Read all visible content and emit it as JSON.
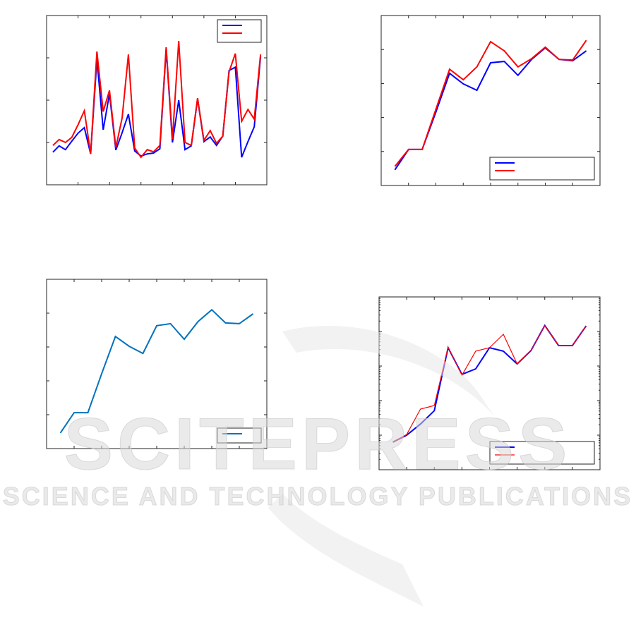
{
  "chart_data": [
    {
      "type": "line",
      "xlim": [
        0,
        7
      ],
      "xticks": [
        1,
        2,
        3,
        4,
        5,
        6
      ],
      "ylim": [
        0,
        4
      ],
      "yticks": [
        1,
        2,
        3
      ],
      "legend": "upper right",
      "x": [
        0.2,
        0.4,
        0.6,
        0.8,
        1.0,
        1.2,
        1.4,
        1.6,
        1.8,
        2.0,
        2.2,
        2.4,
        2.6,
        2.8,
        3.0,
        3.2,
        3.4,
        3.6,
        3.8,
        4.0,
        4.2,
        4.4,
        4.6,
        4.8,
        5.0,
        5.2,
        5.4,
        5.6,
        5.8,
        6.0,
        6.2,
        6.4,
        6.6,
        6.8
      ],
      "series": [
        {
          "color": "#0000ff",
          "values": [
            0.77,
            0.92,
            0.83,
            1.03,
            1.22,
            1.35,
            0.73,
            2.97,
            1.3,
            2.15,
            0.82,
            1.23,
            1.67,
            0.8,
            0.68,
            0.73,
            0.75,
            0.85,
            3.2,
            1.0,
            2.0,
            0.83,
            0.92,
            2.03,
            1.02,
            1.13,
            0.93,
            1.15,
            2.7,
            2.78,
            0.65,
            1.02,
            1.37,
            3.03
          ]
        },
        {
          "color": "#ff0000",
          "values": [
            0.93,
            1.07,
            1.0,
            1.12,
            1.42,
            1.75,
            0.73,
            3.15,
            1.73,
            2.23,
            0.88,
            1.58,
            3.08,
            0.87,
            0.65,
            0.83,
            0.78,
            0.93,
            3.25,
            1.08,
            3.4,
            1.0,
            0.93,
            2.05,
            1.05,
            1.28,
            0.98,
            1.15,
            2.67,
            3.1,
            1.5,
            1.78,
            1.55,
            3.08
          ]
        }
      ]
    },
    {
      "type": "line",
      "xlim": [
        0,
        8
      ],
      "xticks": [
        1,
        2,
        3,
        4,
        5,
        6,
        7
      ],
      "ylim": [
        0,
        5
      ],
      "yticks": [
        1,
        2,
        3,
        4
      ],
      "legend": "lower right",
      "x": [
        0.5,
        1.0,
        1.5,
        2.0,
        2.5,
        3.0,
        3.5,
        4.0,
        4.5,
        5.0,
        5.5,
        6.0,
        6.5,
        7.0,
        7.5
      ],
      "series": [
        {
          "color": "#0000ff",
          "values": [
            0.46,
            1.06,
            1.06,
            2.16,
            3.3,
            2.99,
            2.8,
            3.61,
            3.65,
            3.24,
            3.71,
            4.05,
            3.71,
            3.67,
            3.96
          ]
        },
        {
          "color": "#ff0000",
          "values": [
            0.56,
            1.06,
            1.06,
            2.24,
            3.42,
            3.11,
            3.49,
            4.23,
            3.96,
            3.49,
            3.73,
            4.07,
            3.71,
            3.69,
            4.27
          ]
        }
      ]
    },
    {
      "type": "line",
      "xlim": [
        0,
        8
      ],
      "xticks": [
        1,
        2,
        3,
        4,
        5,
        6,
        7
      ],
      "ylim": [
        0,
        5
      ],
      "yticks": [
        1,
        2,
        3,
        4
      ],
      "legend": "lower right",
      "x": [
        0.5,
        1.0,
        1.5,
        2.0,
        2.5,
        3.0,
        3.5,
        4.0,
        4.5,
        5.0,
        5.5,
        6.0,
        6.5,
        7.0,
        7.5
      ],
      "series": [
        {
          "color": "#0072bd",
          "values": [
            0.46,
            1.06,
            1.06,
            2.21,
            3.31,
            3.02,
            2.81,
            3.63,
            3.69,
            3.23,
            3.75,
            4.1,
            3.71,
            3.69,
            3.98
          ]
        }
      ]
    },
    {
      "type": "line",
      "log": true,
      "xlim": [
        0,
        8
      ],
      "xticks": [
        1,
        2,
        3,
        4,
        5,
        6,
        7
      ],
      "ylim": [
        1,
        100000
      ],
      "yticks": [
        10,
        100,
        1000,
        10000
      ],
      "legend": "lower right",
      "x": [
        0.5,
        1.0,
        1.5,
        2.0,
        2.5,
        3.0,
        3.5,
        4.0,
        4.5,
        5.0,
        5.5,
        6.0,
        6.5,
        7.0,
        7.5
      ],
      "series": [
        {
          "color": "#0000ff",
          "values": [
            6.3,
            10,
            21,
            51,
            3400,
            575,
            830,
            3400,
            2700,
            1150,
            2800,
            15000,
            3900,
            3900,
            14500
          ]
        },
        {
          "color": "#ff0000",
          "values": [
            6.3,
            10.5,
            57,
            72,
            3550,
            540,
            2700,
            3400,
            8300,
            1150,
            2800,
            15000,
            3900,
            3900,
            14500
          ]
        }
      ]
    }
  ],
  "watermark": {
    "title": "SCITEPRESS",
    "subtitle": "SCIENCE AND TECHNOLOGY PUBLICATIONS"
  }
}
